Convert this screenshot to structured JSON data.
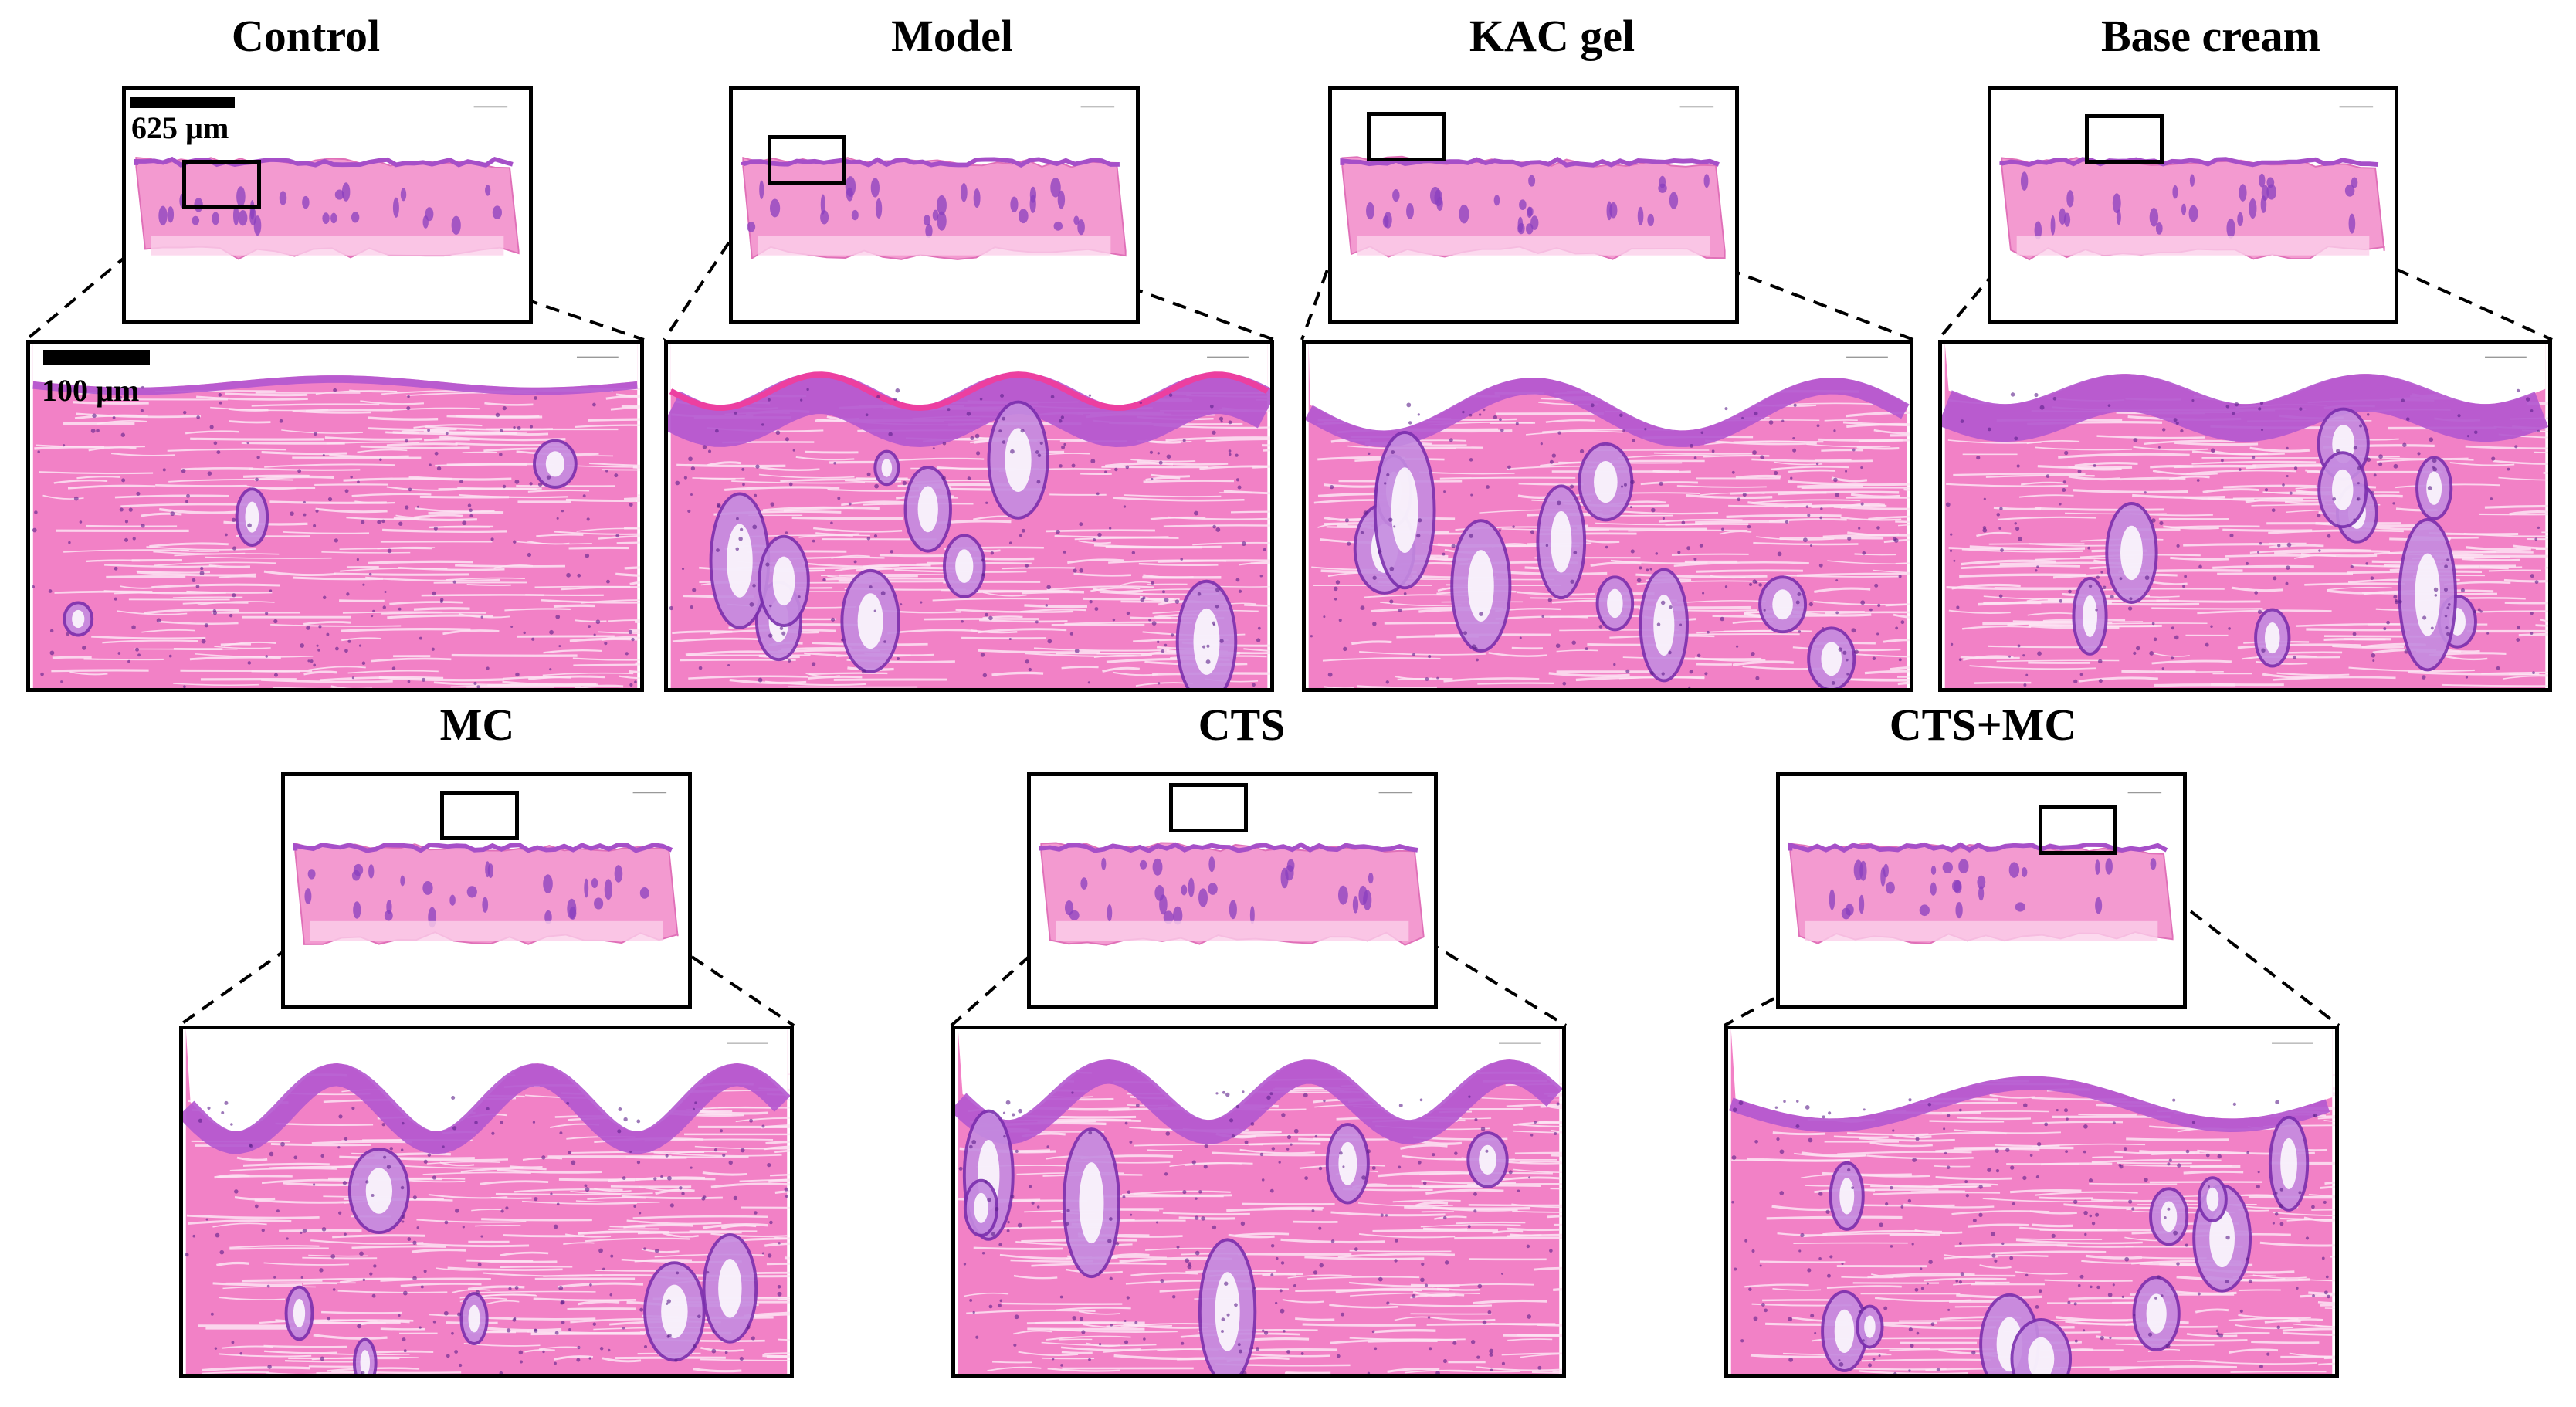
{
  "panels": [
    {
      "id": "control",
      "title": "Control"
    },
    {
      "id": "model",
      "title": "Model"
    },
    {
      "id": "kac",
      "title": "KAC gel"
    },
    {
      "id": "base",
      "title": "Base cream"
    },
    {
      "id": "mc",
      "title": "MC"
    },
    {
      "id": "cts",
      "title": "CTS"
    },
    {
      "id": "ctsmc",
      "title": "CTS+MC"
    }
  ],
  "scale_bars": {
    "overview": "625 µm",
    "zoom": "100 µm"
  },
  "colors": {
    "eosin": "#f07fc4",
    "hematoxylin": "#8a3fbf",
    "background": "#ffffff",
    "frame": "#000000"
  }
}
